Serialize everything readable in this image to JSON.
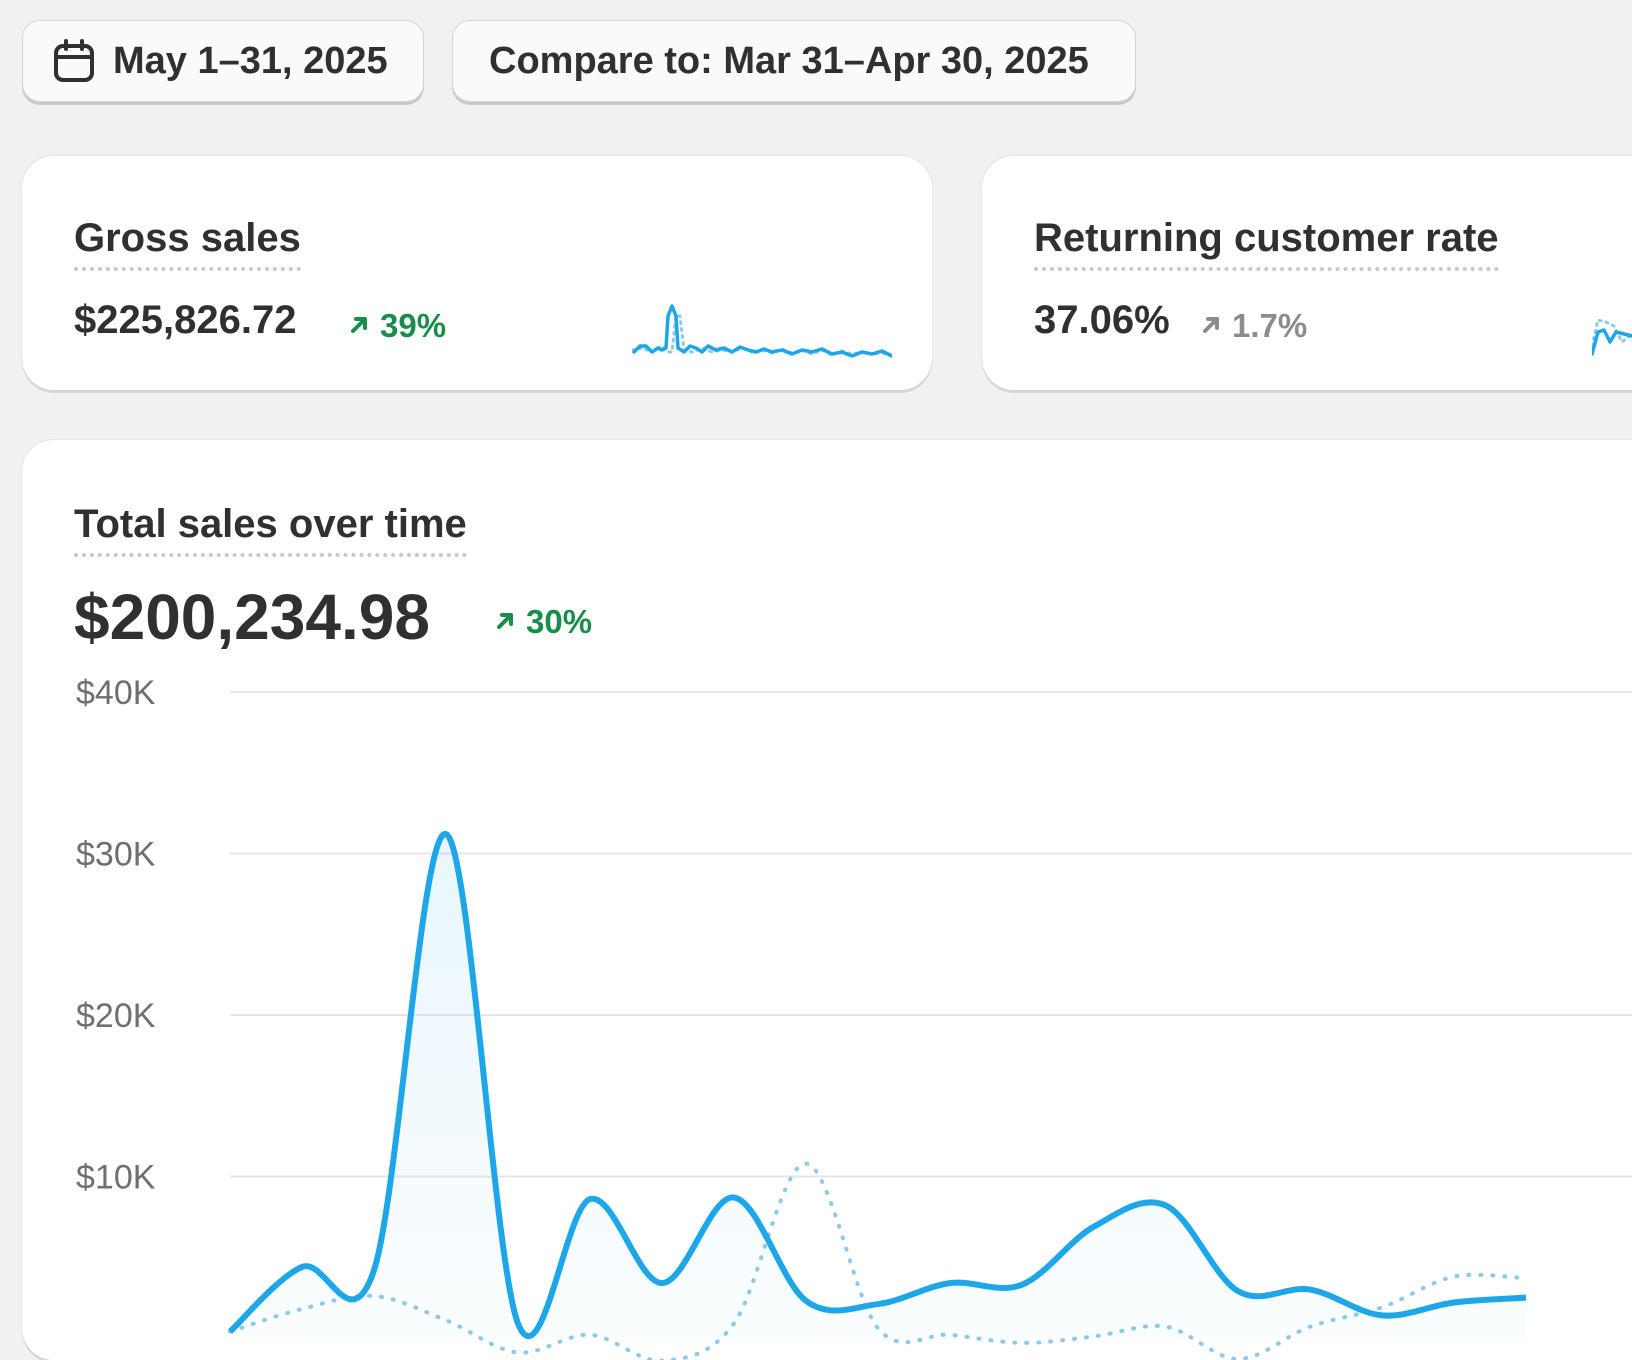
{
  "filters": {
    "date_range_label": "May 1–31, 2025",
    "compare_label": "Compare to: Mar 31–Apr 30, 2025"
  },
  "metrics": [
    {
      "title": "Gross sales",
      "value": "$225,826.72",
      "change": "39%",
      "change_direction": "up",
      "change_color": "#1a8d4b"
    },
    {
      "title": "Returning customer rate",
      "value": "37.06%",
      "change": "1.7%",
      "change_direction": "up",
      "change_color": "#8c8c8c"
    }
  ],
  "total_sales": {
    "title": "Total sales over time",
    "value": "$200,234.98",
    "change": "30%",
    "change_direction": "up",
    "change_color": "#1a8d4b"
  },
  "chart_data": {
    "type": "line",
    "title": "Total sales over time",
    "y_ticks": [
      "$40K",
      "$30K",
      "$20K",
      "$10K"
    ],
    "ylim": [
      0,
      40000
    ],
    "grid": true,
    "series": [
      {
        "style": "solid",
        "color": "#1ea7e8",
        "values": [
          400,
          4400,
          4200,
          31200,
          900,
          8600,
          3400,
          8700,
          2300,
          2100,
          3400,
          3300,
          6900,
          8200,
          2900,
          3000,
          1400,
          2200,
          2500
        ]
      },
      {
        "style": "dotted",
        "color": "#8cc9ea",
        "values": [
          400,
          1800,
          2600,
          1100,
          -900,
          200,
          -1400,
          900,
          10800,
          600,
          200,
          -300,
          100,
          700,
          -1300,
          700,
          1900,
          3800,
          3700
        ]
      }
    ]
  },
  "colors": {
    "accent": "#1ea7e8",
    "positive": "#1a8d4b",
    "neutral": "#8c8c8c",
    "background": "#f1f1f1"
  }
}
